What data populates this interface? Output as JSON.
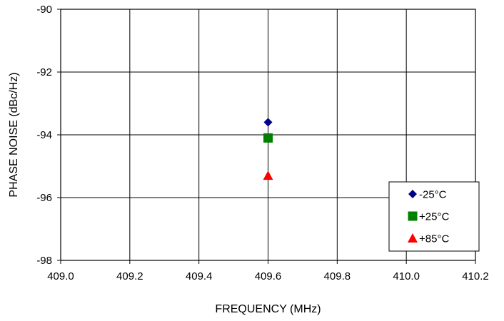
{
  "chart_data": {
    "type": "scatter",
    "title": "",
    "xlabel": "FREQUENCY (MHz)",
    "ylabel": "PHASE NOISE  (dBc/Hz)",
    "xlim": [
      409.0,
      410.2
    ],
    "ylim": [
      -98,
      -90
    ],
    "x_ticks": [
      409.0,
      409.2,
      409.4,
      409.6,
      409.8,
      410.0,
      410.2
    ],
    "x_tick_labels": [
      "409.0",
      "409.2",
      "409.4",
      "409.6",
      "409.8",
      "410.0",
      "410.2"
    ],
    "y_ticks": [
      -98,
      -96,
      -94,
      -92,
      -90
    ],
    "y_tick_labels": [
      "-98",
      "-96",
      "-94",
      "-92",
      "-90"
    ],
    "grid": true,
    "legend_position": "bottom-right",
    "series": [
      {
        "name": "-25°C",
        "marker": "diamond",
        "color": "#00008B",
        "points": [
          {
            "x": 409.6,
            "y": -93.6
          }
        ]
      },
      {
        "name": "+25°C",
        "marker": "square",
        "color": "#008000",
        "points": [
          {
            "x": 409.6,
            "y": -94.1
          }
        ]
      },
      {
        "name": "+85°C",
        "marker": "triangle",
        "color": "#FF0000",
        "points": [
          {
            "x": 409.6,
            "y": -95.3
          }
        ]
      }
    ]
  }
}
